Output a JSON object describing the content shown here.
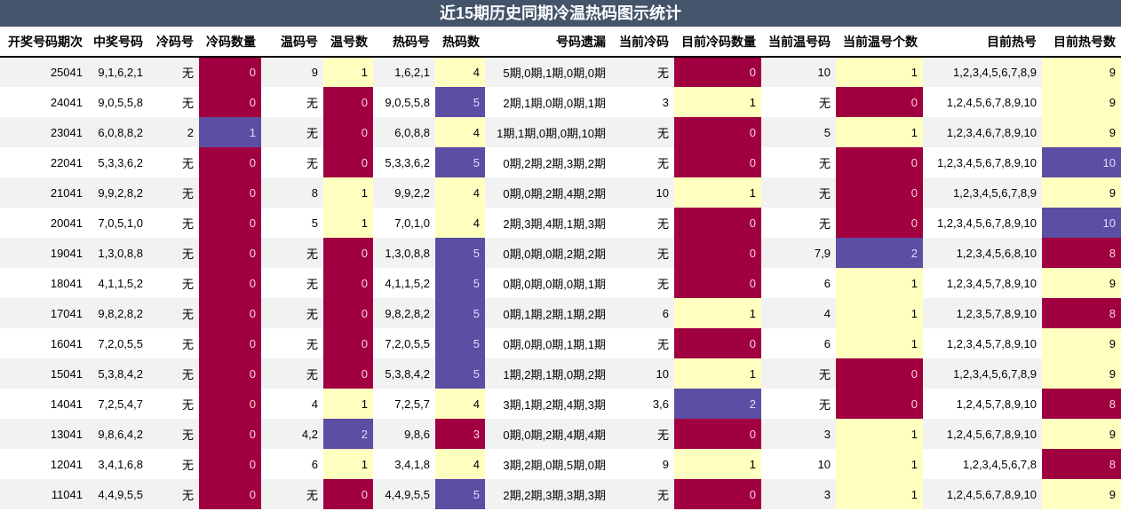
{
  "title": "近15期历史同期冷温热码图示统计",
  "colors": {
    "header": "#44546a",
    "red": "#a00040",
    "yellow": "#ffffc0",
    "purple": "#5b4ea3"
  },
  "headers": [
    "开奖号码期次",
    "中奖号码",
    "冷码号",
    "冷码数量",
    "温码号",
    "温号数",
    "热码号",
    "热码数",
    "号码遗漏",
    "当前冷码",
    "目前冷码数量",
    "当前温号码",
    "当前温号个数",
    "目前热号",
    "目前热号数"
  ],
  "rows": [
    [
      "25041",
      "9,1,6,2,1",
      "无",
      "0",
      "9",
      "1",
      "1,6,2,1",
      "4",
      "5期,0期,1期,0期,0期",
      "无",
      "0",
      "10",
      "1",
      "1,2,3,4,5,6,7,8,9",
      "9"
    ],
    [
      "24041",
      "9,0,5,5,8",
      "无",
      "0",
      "无",
      "0",
      "9,0,5,5,8",
      "5",
      "2期,1期,0期,0期,1期",
      "3",
      "1",
      "无",
      "0",
      "1,2,4,5,6,7,8,9,10",
      "9"
    ],
    [
      "23041",
      "6,0,8,8,2",
      "2",
      "1",
      "无",
      "0",
      "6,0,8,8",
      "4",
      "1期,1期,0期,0期,10期",
      "无",
      "0",
      "5",
      "1",
      "1,2,3,4,6,7,8,9,10",
      "9"
    ],
    [
      "22041",
      "5,3,3,6,2",
      "无",
      "0",
      "无",
      "0",
      "5,3,3,6,2",
      "5",
      "0期,2期,2期,3期,2期",
      "无",
      "0",
      "无",
      "0",
      "1,2,3,4,5,6,7,8,9,10",
      "10"
    ],
    [
      "21041",
      "9,9,2,8,2",
      "无",
      "0",
      "8",
      "1",
      "9,9,2,2",
      "4",
      "0期,0期,2期,4期,2期",
      "10",
      "1",
      "无",
      "0",
      "1,2,3,4,5,6,7,8,9",
      "9"
    ],
    [
      "20041",
      "7,0,5,1,0",
      "无",
      "0",
      "5",
      "1",
      "7,0,1,0",
      "4",
      "2期,3期,4期,1期,3期",
      "无",
      "0",
      "无",
      "0",
      "1,2,3,4,5,6,7,8,9,10",
      "10"
    ],
    [
      "19041",
      "1,3,0,8,8",
      "无",
      "0",
      "无",
      "0",
      "1,3,0,8,8",
      "5",
      "0期,0期,0期,2期,2期",
      "无",
      "0",
      "7,9",
      "2",
      "1,2,3,4,5,6,8,10",
      "8"
    ],
    [
      "18041",
      "4,1,1,5,2",
      "无",
      "0",
      "无",
      "0",
      "4,1,1,5,2",
      "5",
      "0期,0期,0期,0期,1期",
      "无",
      "0",
      "6",
      "1",
      "1,2,3,4,5,7,8,9,10",
      "9"
    ],
    [
      "17041",
      "9,8,2,8,2",
      "无",
      "0",
      "无",
      "0",
      "9,8,2,8,2",
      "5",
      "0期,1期,2期,1期,2期",
      "6",
      "1",
      "4",
      "1",
      "1,2,3,5,7,8,9,10",
      "8"
    ],
    [
      "16041",
      "7,2,0,5,5",
      "无",
      "0",
      "无",
      "0",
      "7,2,0,5,5",
      "5",
      "0期,0期,0期,1期,1期",
      "无",
      "0",
      "6",
      "1",
      "1,2,3,4,5,7,8,9,10",
      "9"
    ],
    [
      "15041",
      "5,3,8,4,2",
      "无",
      "0",
      "无",
      "0",
      "5,3,8,4,2",
      "5",
      "1期,2期,1期,0期,2期",
      "10",
      "1",
      "无",
      "0",
      "1,2,3,4,5,6,7,8,9",
      "9"
    ],
    [
      "14041",
      "7,2,5,4,7",
      "无",
      "0",
      "4",
      "1",
      "7,2,5,7",
      "4",
      "3期,1期,2期,4期,3期",
      "3,6",
      "2",
      "无",
      "0",
      "1,2,4,5,7,8,9,10",
      "8"
    ],
    [
      "13041",
      "9,8,6,4,2",
      "无",
      "0",
      "4,2",
      "2",
      "9,8,6",
      "3",
      "0期,0期,2期,4期,4期",
      "无",
      "0",
      "3",
      "1",
      "1,2,4,5,6,7,8,9,10",
      "9"
    ],
    [
      "12041",
      "3,4,1,6,8",
      "无",
      "0",
      "6",
      "1",
      "3,4,1,8",
      "4",
      "3期,2期,0期,5期,0期",
      "9",
      "1",
      "10",
      "1",
      "1,2,3,4,5,6,7,8",
      "8"
    ],
    [
      "11041",
      "4,4,9,5,5",
      "无",
      "0",
      "无",
      "0",
      "4,4,9,5,5",
      "5",
      "2期,2期,3期,3期,3期",
      "无",
      "0",
      "3",
      "1",
      "1,2,4,5,6,7,8,9,10",
      "9"
    ]
  ]
}
